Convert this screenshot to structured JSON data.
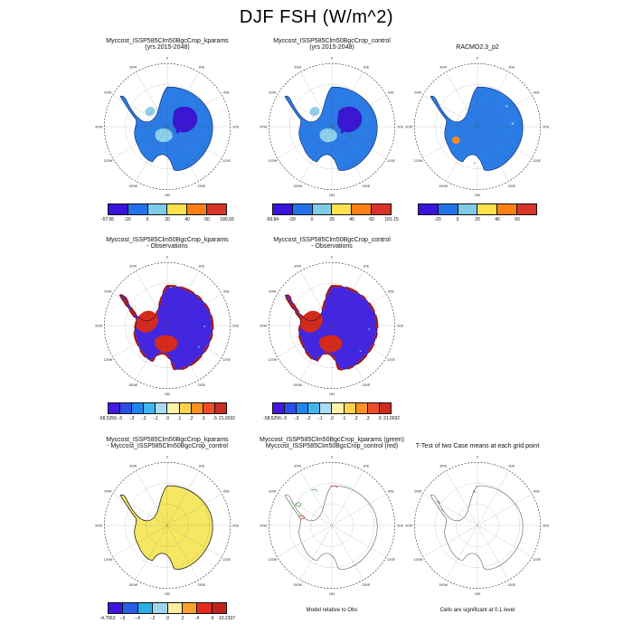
{
  "title": "DJF FSH (W/m^2)",
  "map_labels": [
    "0",
    "30E",
    "60E",
    "90E",
    "120E",
    "150E",
    "180",
    "150W",
    "120W",
    "90W",
    "60W",
    "30W"
  ],
  "panels": {
    "p1": {
      "title1": "Myccost_ISSP585Clm50BgcCrop_kparams",
      "title2": "(yrs 2015-2048)",
      "map": {
        "land_fill": "#2b7ce6",
        "violet": "#3a16d4",
        "light": "#8fd0ec",
        "outline": "#102a70"
      },
      "colorbar": {
        "colors": [
          "#3a13dc",
          "#2273ea",
          "#7ecbea",
          "#ffe14e",
          "#ff7f16",
          "#d8342a"
        ],
        "labels": [
          "-57.06",
          "-20",
          "0",
          "20",
          "40",
          "60",
          "180.93"
        ],
        "end_labels": true
      }
    },
    "p2": {
      "title1": "Myccost_ISSP585Clm50BgcCrop_control",
      "title2": "(yrs 2015-2048)",
      "map": {
        "land_fill": "#2b7ce6",
        "violet": "#3a16d4",
        "light": "#8fd0ec",
        "outline": "#102a70"
      },
      "colorbar": {
        "colors": [
          "#3a13dc",
          "#2273ea",
          "#7ecbea",
          "#ffe14e",
          "#ff7f16",
          "#d8342a"
        ],
        "labels": [
          "-59.84",
          "-20",
          "0",
          "20",
          "40",
          "60",
          "181.15"
        ],
        "end_labels": true
      }
    },
    "p3": {
      "title1": "RACMO2.3_p2",
      "map": {
        "land_fill": "#2b7ce6",
        "light": "#8fd0ec",
        "orange": "#ff8a1e",
        "outline": "#102a70"
      },
      "colorbar": {
        "colors": [
          "#3a13dc",
          "#2273ea",
          "#7ecbea",
          "#ffe14e",
          "#ff7f16",
          "#d8342a"
        ],
        "labels": [
          "-20",
          "0",
          "20",
          "40",
          "60"
        ],
        "end_labels": false
      }
    },
    "p4": {
      "title1": "Myccost_ISSP585Clm50BgcCrop_kparams",
      "title2": "- Observations",
      "map": {
        "land_fill": "#4326e0",
        "red": "#d62a1c",
        "cyan": "#57c8f0",
        "outline": "#0d0d3a"
      },
      "colorbar": {
        "colors": [
          "#4517e0",
          "#2a4fe8",
          "#1f86ee",
          "#40b6f0",
          "#a8dcf4",
          "#fdf2a8",
          "#ffd24e",
          "#ff9224",
          "#ef4e28",
          "#ce2a1e"
        ],
        "labels": [
          "-58.5256",
          "-.5",
          "-.3",
          "-.2",
          "-.1",
          ".0",
          ".1",
          ".2",
          ".3",
          ".5",
          "21.0032"
        ],
        "end_labels": true
      }
    },
    "p5": {
      "title1": "Myccost_ISSP585Clm50BgcCrop_control",
      "title2": "- Observations",
      "map": {
        "land_fill": "#4326e0",
        "red": "#d62a1c",
        "cyan": "#57c8f0",
        "outline": "#0d0d3a"
      },
      "colorbar": {
        "colors": [
          "#4517e0",
          "#2a4fe8",
          "#1f86ee",
          "#40b6f0",
          "#a8dcf4",
          "#fdf2a8",
          "#ffd24e",
          "#ff9224",
          "#ef4e28",
          "#ce2a1e"
        ],
        "labels": [
          "-58.5256",
          "-.5",
          "-.3",
          "-.2",
          "-.1",
          ".0",
          ".1",
          ".2",
          ".3",
          ".5",
          "21.0032"
        ],
        "end_labels": true
      }
    },
    "p7": {
      "title1": "Myccost_ISSP585Clm50BgcCrop_kparams",
      "title2": "- Myccost_ISSP585Clm50BgcCrop_control",
      "map": {
        "land_fill": "#f6e763",
        "outline": "#111111"
      },
      "colorbar": {
        "colors": [
          "#3d15dc",
          "#2b5de6",
          "#2bafe0",
          "#9ed4ee",
          "#fbec9e",
          "#ffa02c",
          "#e7281c",
          "#c0231a"
        ],
        "labels": [
          "-4.7063",
          "-.6",
          "-.4",
          "-.2",
          ".0",
          ".2",
          ".4",
          ".6",
          "10.2337"
        ],
        "end_labels": true
      }
    },
    "p8": {
      "title1": "Myccost_ISSP585Clm50BgcCrop_kparams (green)",
      "title2": "Myccost_ISSP585Clm50BgcCrop_control (red)",
      "map": {
        "land_fill": "#ffffff",
        "outline": "#555555",
        "green": "#1f8a1f",
        "red": "#c8281e"
      },
      "footnote": "Model relative to Obs"
    },
    "p9": {
      "title1": "T-Test of two Case means at each grid point",
      "map": {
        "land_fill": "#ffffff",
        "outline": "#555555",
        "marks": "#333333"
      },
      "footnote": "Cells are significant at 0.1 level"
    }
  },
  "chart_data": [
    {
      "type": "heatmap",
      "title": "Myccost_ISSP585Clm50BgcCrop_kparams (yrs 2015-2048)",
      "suptitle": "DJF FSH (W/m^2)",
      "projection": "south polar stereographic",
      "region": "Antarctica",
      "units": "W/m^2",
      "levels": [
        -20,
        0,
        20,
        40,
        60
      ],
      "data_min": -57.06,
      "data_max": 180.93,
      "palette": [
        "#3a13dc",
        "#2273ea",
        "#7ecbea",
        "#ffe14e",
        "#ff7f16",
        "#d8342a"
      ],
      "summary": "Continent mostly in -20..0 class (blue); East Antarctic interior below -20 (violet); small coastal/ice-shelf areas 0..20 (light blue)."
    },
    {
      "type": "heatmap",
      "title": "Myccost_ISSP585Clm50BgcCrop_control (yrs 2015-2048)",
      "projection": "south polar stereographic",
      "region": "Antarctica",
      "units": "W/m^2",
      "levels": [
        -20,
        0,
        20,
        40,
        60
      ],
      "data_min": -59.84,
      "data_max": 181.15,
      "palette": [
        "#3a13dc",
        "#2273ea",
        "#7ecbea",
        "#ffe14e",
        "#ff7f16",
        "#d8342a"
      ],
      "summary": "Nearly identical pattern to kparams run: blue continent, violet interior plateau, light-blue patches."
    },
    {
      "type": "heatmap",
      "title": "RACMO2.3_p2",
      "projection": "south polar stereographic",
      "region": "Antarctica",
      "units": "W/m^2",
      "levels": [
        -20,
        0,
        20,
        40,
        60
      ],
      "palette": [
        "#3a13dc",
        "#2273ea",
        "#7ecbea",
        "#ffe14e",
        "#ff7f16",
        "#d8342a"
      ],
      "summary": "Uniform blue (-20..0) over continent with a small orange (40..60) coastal spot in the lower-left sector."
    },
    {
      "type": "heatmap",
      "title": "Myccost_ISSP585Clm50BgcCrop_kparams - Observations",
      "projection": "south polar stereographic",
      "region": "Antarctica",
      "units": "W/m^2",
      "levels": [
        -0.5,
        -0.3,
        -0.2,
        -0.1,
        0,
        0.1,
        0.2,
        0.3,
        0.5
      ],
      "data_min": -58.5256,
      "data_max": 21.0032,
      "palette": [
        "#4517e0",
        "#2a4fe8",
        "#1f86ee",
        "#40b6f0",
        "#a8dcf4",
        "#fdf2a8",
        "#ffd24e",
        "#ff9224",
        "#ef4e28",
        "#ce2a1e"
      ],
      "summary": "Strong negative bias (violet, below -0.5) over most of the continent with large positive (red, above 0.5) patches in West Antarctica and along the coasts."
    },
    {
      "type": "heatmap",
      "title": "Myccost_ISSP585Clm50BgcCrop_control - Observations",
      "projection": "south polar stereographic",
      "region": "Antarctica",
      "units": "W/m^2",
      "levels": [
        -0.5,
        -0.3,
        -0.2,
        -0.1,
        0,
        0.1,
        0.2,
        0.3,
        0.5
      ],
      "data_min": -58.5256,
      "data_max": 21.0032,
      "palette": [
        "#4517e0",
        "#2a4fe8",
        "#1f86ee",
        "#40b6f0",
        "#a8dcf4",
        "#fdf2a8",
        "#ffd24e",
        "#ff9224",
        "#ef4e28",
        "#ce2a1e"
      ],
      "summary": "Same bias pattern as kparams minus observations: violet interior, red coastal/West Antarctic patches."
    },
    {
      "type": "heatmap",
      "title": "Myccost_ISSP585Clm50BgcCrop_kparams - Myccost_ISSP585Clm50BgcCrop_control",
      "projection": "south polar stereographic",
      "region": "Antarctica",
      "units": "W/m^2",
      "levels": [
        -0.6,
        -0.4,
        -0.2,
        0,
        0.2,
        0.4,
        0.6
      ],
      "data_min": -4.7063,
      "data_max": 10.2337,
      "palette": [
        "#3d15dc",
        "#2b5de6",
        "#2bafe0",
        "#9ed4ee",
        "#fbec9e",
        "#ffa02c",
        "#e7281c",
        "#c0231a"
      ],
      "summary": "Near-zero difference everywhere: whole continent in the 0..0.2 class (pale yellow)."
    },
    {
      "type": "heatmap",
      "title": "Myccost_ISSP585Clm50BgcCrop_kparams (green) Myccost_ISSP585Clm50BgcCrop_control (red)",
      "note": "Model relative to Obs",
      "summary": "Contour overlay map, outline only with sparse green (kparams) and red (control) contours."
    },
    {
      "type": "heatmap",
      "title": "T-Test of two Case means at each grid point",
      "note": "Cells are significant at 0.1 level",
      "summary": "Significance map, outline only with very few significant cells."
    }
  ]
}
